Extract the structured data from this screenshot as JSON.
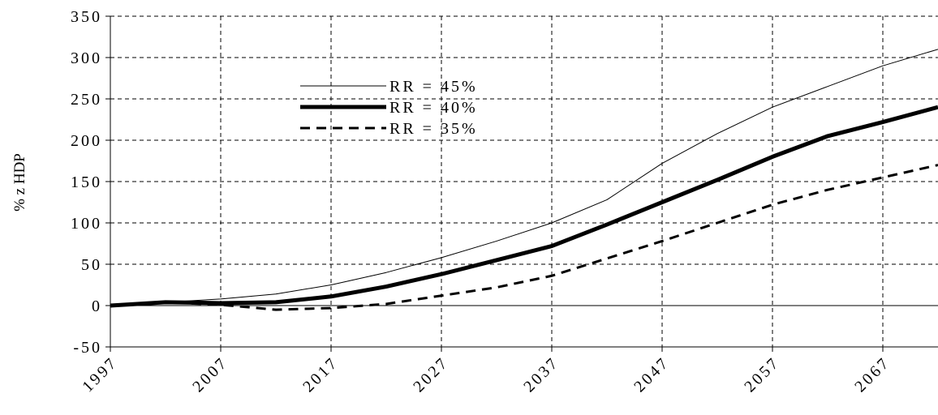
{
  "chart_data": {
    "type": "line",
    "y_label": "% z HDP",
    "x": [
      1997,
      2002,
      2007,
      2012,
      2017,
      2022,
      2027,
      2032,
      2037,
      2042,
      2047,
      2052,
      2057,
      2062,
      2067,
      2072
    ],
    "series": [
      {
        "name": "RR = 45%",
        "color": "#000000",
        "linewidth": 1,
        "dashed": false,
        "values": [
          0,
          4,
          8,
          14,
          25,
          40,
          58,
          78,
          100,
          128,
          172,
          208,
          240,
          265,
          290,
          310
        ]
      },
      {
        "name": "RR = 40%",
        "color": "#000000",
        "linewidth": 5,
        "dashed": false,
        "values": [
          0,
          4,
          3,
          4,
          11,
          23,
          38,
          55,
          72,
          98,
          125,
          152,
          180,
          205,
          222,
          240
        ]
      },
      {
        "name": "RR = 35%",
        "color": "#000000",
        "linewidth": 3,
        "dashed": true,
        "values": [
          0,
          4,
          1,
          -5,
          -3,
          2,
          12,
          22,
          36,
          57,
          78,
          100,
          122,
          140,
          155,
          170
        ]
      }
    ],
    "xlim": [
      1997,
      2072
    ],
    "xticks": [
      1997,
      2007,
      2017,
      2027,
      2037,
      2047,
      2057,
      2067
    ],
    "ylim": [
      -50,
      350
    ],
    "yticks": [
      -50,
      0,
      50,
      100,
      150,
      200,
      250,
      300,
      350
    ],
    "grid": true
  }
}
